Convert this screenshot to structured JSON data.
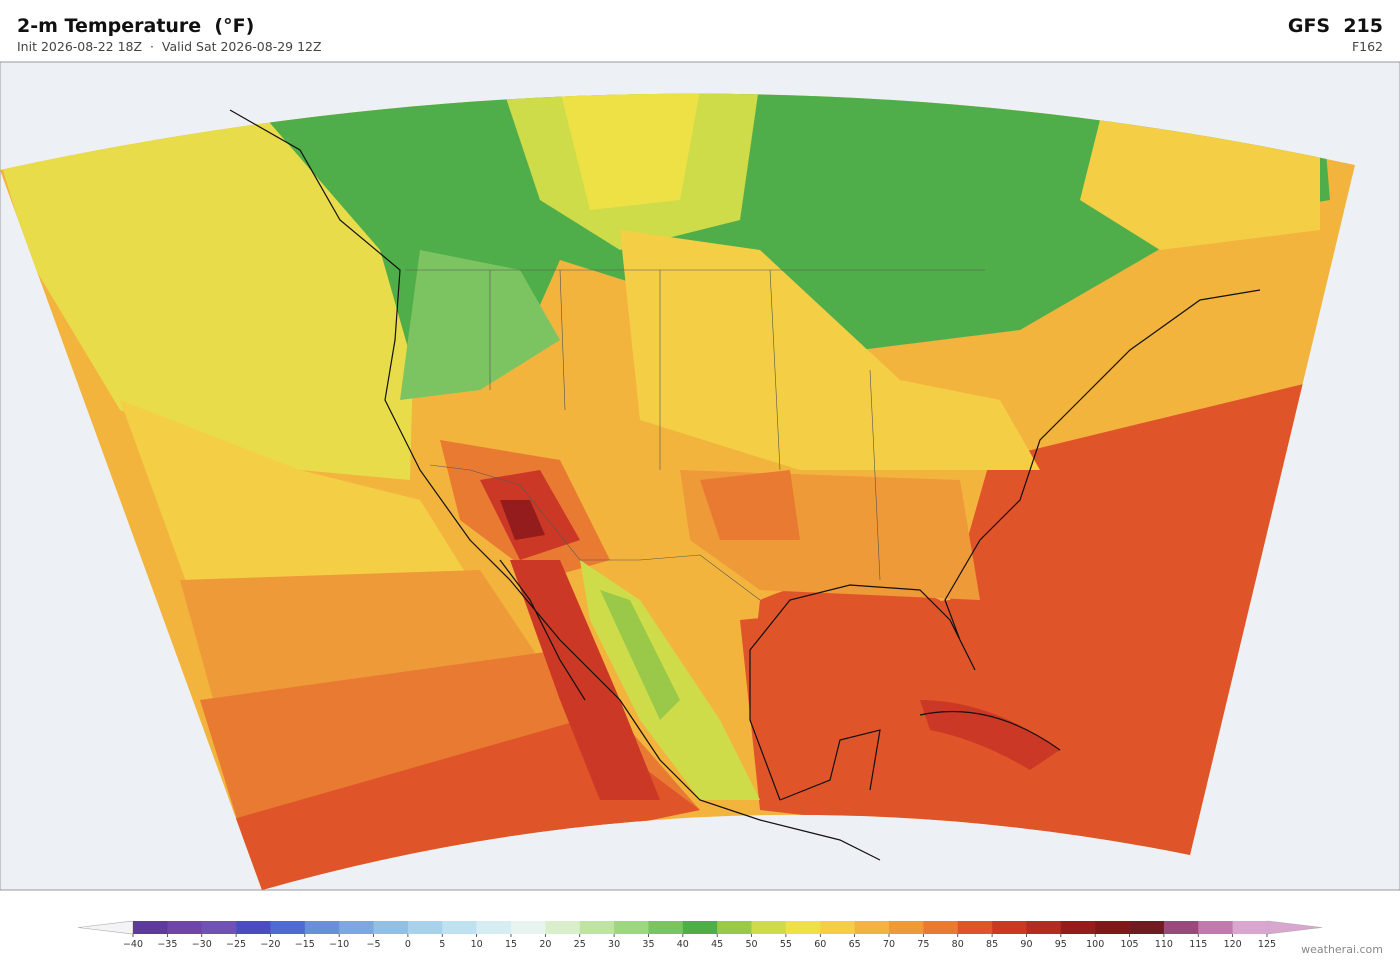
{
  "header": {
    "title": "2-m Temperature  (°F)",
    "subtitle": "Init 2026-08-22 18Z  ·  Valid Sat 2026-08-29 12Z",
    "model": "GFS  215",
    "forecast_hour": "F162"
  },
  "colorbar": {
    "ticks": [
      {
        "value": -40,
        "label": "−40"
      },
      {
        "value": -35,
        "label": "−35"
      },
      {
        "value": -30,
        "label": "−30"
      },
      {
        "value": -25,
        "label": "−25"
      },
      {
        "value": -20,
        "label": "−20"
      },
      {
        "value": -15,
        "label": "−15"
      },
      {
        "value": -10,
        "label": "−10"
      },
      {
        "value": -5,
        "label": "−5"
      },
      0,
      5,
      10,
      15,
      20,
      25,
      30,
      35,
      40,
      45,
      50,
      55,
      60,
      65,
      70,
      75,
      80,
      85,
      90,
      95,
      100,
      105,
      110,
      115,
      120,
      125
    ],
    "colors": [
      "#5e3a9a",
      "#6f46a8",
      "#7052b5",
      "#4a4cbf",
      "#4f6ad0",
      "#6a8ed8",
      "#7fa6dd",
      "#93bfe3",
      "#a8d2ea",
      "#c0e2f0",
      "#d6edf3",
      "#e8f4f0",
      "#d9eecb",
      "#bfe3a3",
      "#9fd681",
      "#7cc462",
      "#4fae4a",
      "#9ac94a",
      "#cfdc4a",
      "#eee146",
      "#f4cf45",
      "#f3b43e",
      "#ef9a38",
      "#e97a32",
      "#e0542a",
      "#cc3826",
      "#b52a22",
      "#951c1c",
      "#7f1818",
      "#701b22",
      "#9a4a7a",
      "#c07aae",
      "#d8a6cf"
    ],
    "under_color": "#f4f4f6",
    "over_color": "#d8a6cf"
  },
  "footer": {
    "credit": "weatherai.com"
  }
}
